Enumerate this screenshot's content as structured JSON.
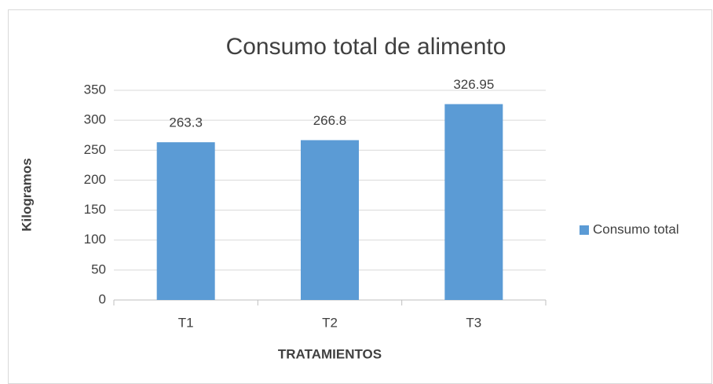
{
  "chart_data": {
    "type": "bar",
    "title": "Consumo total de alimento",
    "x_label": "TRATAMIENTOS",
    "y_label": "Kilogramos",
    "categories": [
      "T1",
      "T2",
      "T3"
    ],
    "series": [
      {
        "name": "Consumo total",
        "color": "#5b9bd5",
        "values": [
          263.3,
          266.8,
          326.95
        ]
      }
    ],
    "ylim": [
      0,
      350
    ],
    "yticks": [
      0,
      50,
      100,
      150,
      200,
      250,
      300,
      350
    ],
    "grid": true,
    "legend": "right"
  }
}
